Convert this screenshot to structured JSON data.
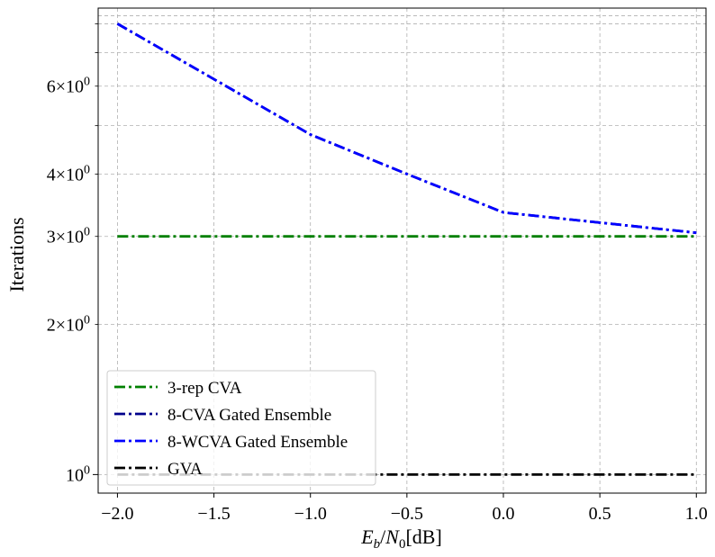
{
  "chart_data": {
    "type": "line",
    "title": "",
    "xlabel": "E_b/N_0 [dB]",
    "xlabel_parts": {
      "E": "E",
      "b": "b",
      "slash": "/",
      "N": "N",
      "zero": "0",
      "unit": "[dB]"
    },
    "ylabel": "Iterations",
    "xlim": [
      -2.1,
      1.05
    ],
    "ylim": [
      0.918,
      8.6
    ],
    "yscale": "log",
    "grid": true,
    "legend_position": "lower-left",
    "x_ticks": [
      {
        "value": -2.0,
        "label": "−2.0"
      },
      {
        "value": -1.5,
        "label": "−1.5"
      },
      {
        "value": -1.0,
        "label": "−1.0"
      },
      {
        "value": -0.5,
        "label": "−0.5"
      },
      {
        "value": 0.0,
        "label": "0.0"
      },
      {
        "value": 0.5,
        "label": "0.5"
      },
      {
        "value": 1.0,
        "label": "1.0"
      }
    ],
    "y_major_ticks": [
      {
        "value": 1,
        "base": "10",
        "exp": "0"
      }
    ],
    "y_minor_ticks": [
      {
        "value": 2,
        "mant": "2",
        "base": "10",
        "exp": "0"
      },
      {
        "value": 3,
        "mant": "3",
        "base": "10",
        "exp": "0"
      },
      {
        "value": 4,
        "mant": "4",
        "base": "10",
        "exp": "0"
      },
      {
        "value": 5,
        "mant": "",
        "base": "",
        "exp": ""
      },
      {
        "value": 6,
        "mant": "6",
        "base": "10",
        "exp": "0"
      },
      {
        "value": 7,
        "mant": "",
        "base": "",
        "exp": ""
      },
      {
        "value": 8,
        "mant": "",
        "base": "",
        "exp": ""
      }
    ],
    "series": [
      {
        "name": "3-rep CVA",
        "color": "#008000",
        "x": [
          -2.0,
          -1.0,
          0.0,
          1.0
        ],
        "y": [
          3.0,
          3.0,
          3.0,
          3.0
        ]
      },
      {
        "name": "8-CVA Gated Ensemble",
        "color": "#00008b",
        "x": [
          -2.0,
          -1.0,
          -0.5,
          0.0,
          1.0
        ],
        "y": [
          8.0,
          4.8,
          4.0,
          3.35,
          3.05
        ]
      },
      {
        "name": "8-WCVA Gated Ensemble",
        "color": "#0000ff",
        "x": [
          -2.0,
          -1.0,
          -0.5,
          0.0,
          1.0
        ],
        "y": [
          8.0,
          4.8,
          4.0,
          3.35,
          3.05
        ]
      },
      {
        "name": "GVA",
        "color": "#000000",
        "x": [
          -2.0,
          -1.0,
          0.0,
          1.0
        ],
        "y": [
          1.0,
          1.0,
          1.0,
          1.0
        ]
      }
    ]
  }
}
